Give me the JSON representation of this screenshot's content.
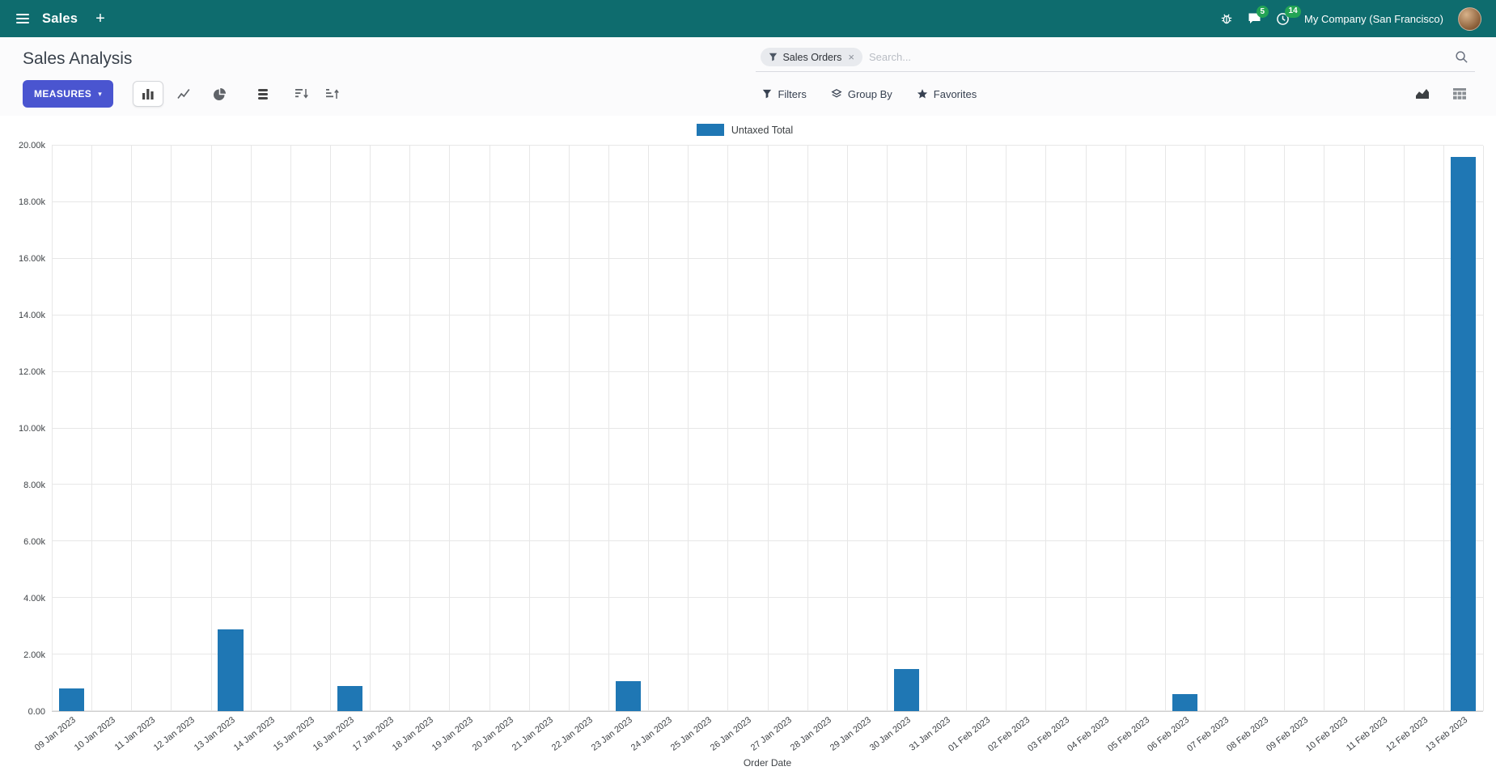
{
  "topbar": {
    "app_name": "Sales",
    "company": "My Company (San Francisco)",
    "messages_badge": "5",
    "activities_badge": "14"
  },
  "icons": {
    "plus": "+",
    "caret_down": "▾",
    "close": "×"
  },
  "control_panel": {
    "title": "Sales Analysis",
    "search": {
      "facet": "Sales Orders",
      "placeholder": "Search..."
    },
    "measures_label": "MEASURES",
    "filters_label": "Filters",
    "group_by_label": "Group By",
    "favorites_label": "Favorites"
  },
  "colors": {
    "navbar_bg": "#0e6c6e",
    "primary_button": "#4a55d0",
    "badge": "#23a455",
    "bar": "#1f77b4"
  },
  "chart_data": {
    "type": "bar",
    "title": "",
    "xlabel": "Order Date",
    "ylabel": "",
    "ylim": [
      0,
      20000
    ],
    "ytick_step": 2000,
    "legend_position": "top",
    "grid": true,
    "categories": [
      "09 Jan 2023",
      "10 Jan 2023",
      "11 Jan 2023",
      "12 Jan 2023",
      "13 Jan 2023",
      "14 Jan 2023",
      "15 Jan 2023",
      "16 Jan 2023",
      "17 Jan 2023",
      "18 Jan 2023",
      "19 Jan 2023",
      "20 Jan 2023",
      "21 Jan 2023",
      "22 Jan 2023",
      "23 Jan 2023",
      "24 Jan 2023",
      "25 Jan 2023",
      "26 Jan 2023",
      "27 Jan 2023",
      "28 Jan 2023",
      "29 Jan 2023",
      "30 Jan 2023",
      "31 Jan 2023",
      "01 Feb 2023",
      "02 Feb 2023",
      "03 Feb 2023",
      "04 Feb 2023",
      "05 Feb 2023",
      "06 Feb 2023",
      "07 Feb 2023",
      "08 Feb 2023",
      "09 Feb 2023",
      "10 Feb 2023",
      "11 Feb 2023",
      "12 Feb 2023",
      "13 Feb 2023"
    ],
    "series": [
      {
        "name": "Untaxed Total",
        "color": "#1f77b4",
        "values": [
          800,
          0,
          0,
          0,
          2900,
          0,
          0,
          900,
          0,
          0,
          0,
          0,
          0,
          0,
          1050,
          0,
          0,
          0,
          0,
          0,
          0,
          1500,
          0,
          0,
          0,
          0,
          0,
          0,
          600,
          0,
          0,
          0,
          0,
          0,
          0,
          19600
        ]
      }
    ]
  }
}
